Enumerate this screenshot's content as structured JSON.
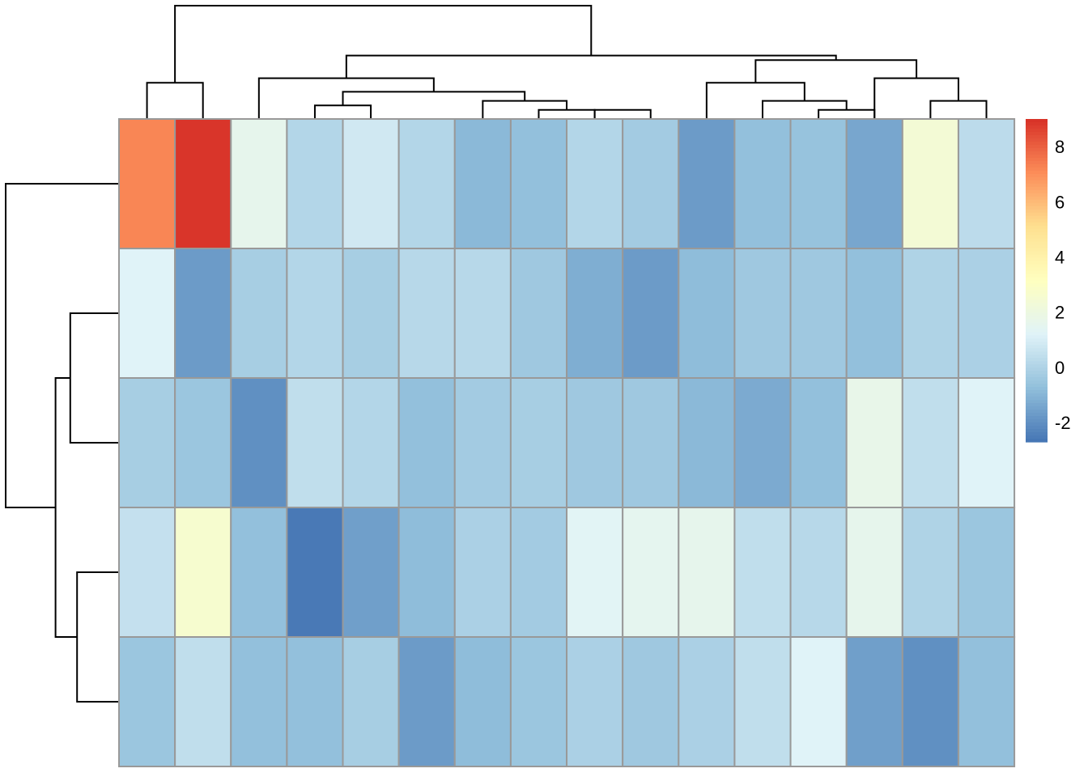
{
  "chart_data": {
    "type": "heatmap",
    "n_rows": 5,
    "n_cols": 16,
    "values": [
      [
        7.2,
        8.9,
        1.6,
        0.1,
        0.8,
        0.1,
        -0.9,
        -0.7,
        0.1,
        -0.3,
        -1.7,
        -0.7,
        -0.6,
        -1.4,
        2.4,
        0.3
      ],
      [
        1.2,
        -1.7,
        -0.2,
        0.1,
        -0.2,
        0.2,
        0.2,
        -0.4,
        -1.2,
        -1.7,
        -0.8,
        -0.4,
        -0.4,
        -0.7,
        0.0,
        -0.1
      ],
      [
        -0.2,
        -0.5,
        -2.0,
        0.4,
        0.1,
        -0.7,
        -0.3,
        -0.2,
        -0.4,
        -0.4,
        -0.9,
        -1.3,
        -0.7,
        1.7,
        0.4,
        1.2
      ],
      [
        0.5,
        2.6,
        -0.7,
        -2.6,
        -1.6,
        -0.8,
        -0.1,
        -0.3,
        1.3,
        1.5,
        1.6,
        0.4,
        0.2,
        1.6,
        0.0,
        -0.5
      ],
      [
        -0.5,
        0.4,
        -0.7,
        -0.7,
        -0.2,
        -1.7,
        -0.8,
        -0.5,
        -0.1,
        -0.4,
        -0.1,
        0.4,
        1.2,
        -1.6,
        -2.0,
        -0.7
      ]
    ],
    "color_scale": {
      "stops": [
        "#4575B4",
        "#91BFDB",
        "#E0F3F8",
        "#FFFFBF",
        "#FEE090",
        "#FC8D59",
        "#D73027"
      ],
      "min": -2.7,
      "max": 9.0
    },
    "legend": {
      "ticks": [
        8,
        6,
        4,
        2,
        0,
        -2
      ],
      "tick_labels": [
        "8",
        "6",
        "4",
        "2",
        "0",
        "-2"
      ],
      "placement": "right"
    },
    "column_dendrogram": [
      [
        0,
        1
      ],
      [
        3,
        4
      ],
      [
        7,
        8
      ],
      [
        6,
        18
      ],
      [
        17,
        19
      ],
      [
        2,
        20
      ],
      [
        8,
        9
      ],
      [
        12,
        13
      ],
      [
        11,
        23
      ],
      [
        10,
        24
      ],
      [
        14,
        15
      ],
      [
        13,
        26
      ],
      [
        25,
        27
      ],
      [
        21,
        28
      ],
      [
        16,
        29
      ]
    ],
    "column_dendrogram_heights": [
      0.32,
      0.12,
      0.08,
      0.16,
      0.24,
      0.36,
      0.08,
      0.08,
      0.16,
      0.32,
      0.16,
      0.36,
      0.52,
      0.56,
      1.0
    ],
    "row_dendrogram": [
      [
        1,
        2
      ],
      [
        3,
        4
      ],
      [
        5,
        6
      ],
      [
        0,
        7
      ]
    ],
    "row_dendrogram_heights": [
      0.43,
      0.37,
      0.56,
      1.0
    ],
    "cell_border_color": "#999999",
    "dendrogram_color": "#000000"
  }
}
